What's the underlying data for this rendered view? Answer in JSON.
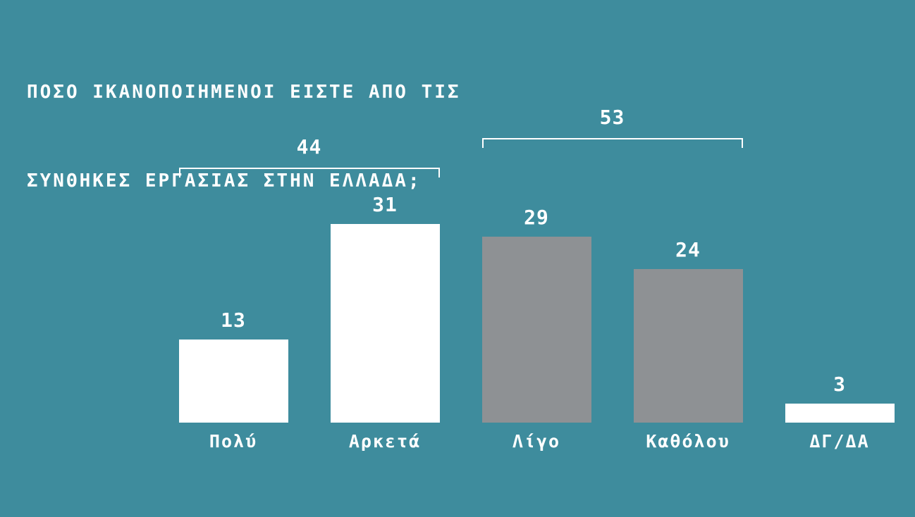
{
  "title_lines": [
    "ΠΟΣΟ ΙΚΑΝΟΠΟΙΗΜΕΝΟΙ ΕΙΣΤΕ ΑΠΟ ΤΙΣ",
    "ΣΥΝΘΗΚΕΣ ΕΡΓΑΣΙΑΣ ΣΤΗΝ ΕΛΛΑΔΑ;"
  ],
  "colors": {
    "background": "#3e8c9d",
    "text": "#ffffff",
    "bar_white": "#ffffff",
    "bar_gray": "#8e9194"
  },
  "chart_data": {
    "type": "bar",
    "title": "ΠΟΣΟ ΙΚΑΝΟΠΟΙΗΜΕΝΟΙ ΕΙΣΤΕ ΑΠΟ ΤΙΣ ΣΥΝΘΗΚΕΣ ΕΡΓΑΣΙΑΣ ΣΤΗΝ ΕΛΛΑΔΑ;",
    "categories": [
      "Πολύ",
      "Αρκετά",
      "Λίγο",
      "Καθόλου",
      "ΔΓ/ΔΑ"
    ],
    "values": [
      13,
      31,
      29,
      24,
      3
    ],
    "bar_colors": [
      "#ffffff",
      "#ffffff",
      "#8e9194",
      "#8e9194",
      "#ffffff"
    ],
    "value_labels_shown": true,
    "xlabel": "",
    "ylabel": "",
    "ylim": [
      0,
      33
    ],
    "grid": false,
    "legend": "none",
    "annotations": [
      {
        "label": "44",
        "from_category": "Πολύ",
        "to_category": "Αρκετά",
        "from": 0,
        "to": 1
      },
      {
        "label": "53",
        "from_category": "Λίγο",
        "to_category": "Καθόλου",
        "from": 2,
        "to": 3
      }
    ]
  }
}
